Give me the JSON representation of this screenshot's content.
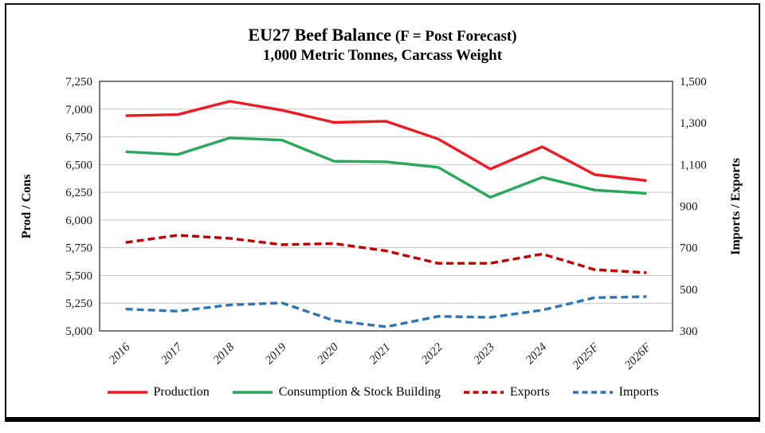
{
  "chart_data": {
    "type": "line",
    "title_main": "EU27 Beef Balance",
    "title_suffix": " (F = Post Forecast)",
    "subtitle": "1,000 Metric Tonnes, Carcass Weight",
    "grid": true,
    "legend_position": "bottom",
    "categories": [
      "2016",
      "2017",
      "2018",
      "2019",
      "2020",
      "2021",
      "2022",
      "2023",
      "2024",
      "2025F",
      "2026F"
    ],
    "left_axis": {
      "label": "Prod / Cons",
      "min": 5000,
      "max": 7250,
      "step": 250,
      "ticks": [
        "7,250",
        "7,000",
        "6,750",
        "6,500",
        "6,250",
        "6,000",
        "5,750",
        "5,500",
        "5,250",
        "5,000"
      ]
    },
    "right_axis": {
      "label": "Imports / Exports",
      "min": 300,
      "max": 1500,
      "step": 200,
      "ticks": [
        "1,500",
        "1,300",
        "1,100",
        "900",
        "700",
        "500",
        "300"
      ]
    },
    "series": [
      {
        "name": "Production",
        "axis": "left",
        "style": "solid",
        "color": "#ED1C24",
        "values": [
          6940,
          6950,
          7070,
          6990,
          6880,
          6890,
          6730,
          6460,
          6660,
          6410,
          6355
        ]
      },
      {
        "name": "Consumption & Stock Building",
        "axis": "left",
        "style": "solid",
        "color": "#27A85B",
        "values": [
          6615,
          6590,
          6740,
          6720,
          6530,
          6525,
          6475,
          6205,
          6385,
          6270,
          6240
        ]
      },
      {
        "name": "Exports",
        "axis": "right",
        "style": "dashed",
        "color": "#C00000",
        "values": [
          725,
          760,
          745,
          715,
          720,
          685,
          625,
          625,
          670,
          595,
          580
        ]
      },
      {
        "name": "Imports",
        "axis": "right",
        "style": "dashed",
        "color": "#2E75B6",
        "values": [
          405,
          395,
          425,
          435,
          350,
          320,
          370,
          365,
          400,
          460,
          465
        ]
      }
    ],
    "grid_color": "#C6C6C6",
    "frame_color": "#595959"
  }
}
